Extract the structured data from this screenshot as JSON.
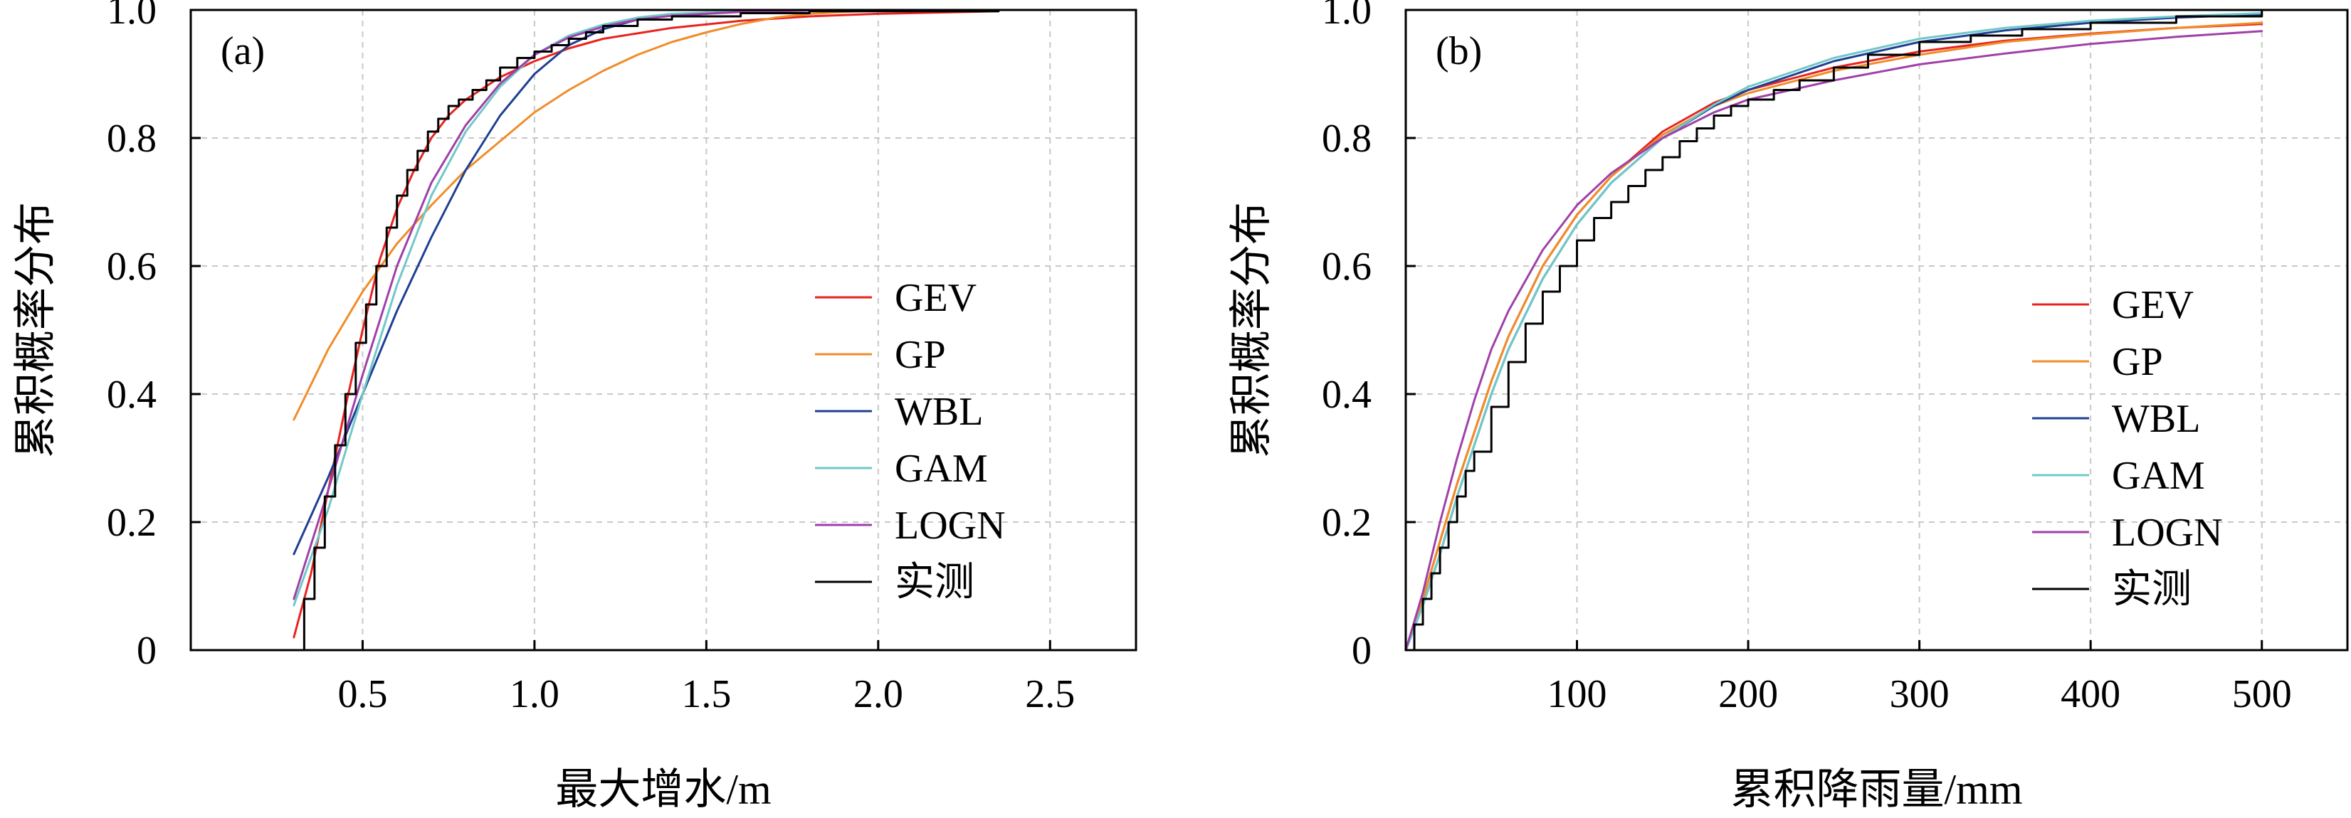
{
  "chart_data": [
    {
      "panel_label": "(a)",
      "type": "line",
      "xlabel": "最大增水/m",
      "ylabel": "累积概率分布",
      "xlim": [
        0.0,
        2.75
      ],
      "ylim": [
        0,
        1.0
      ],
      "xticks": [
        0.5,
        1.0,
        1.5,
        2.0,
        2.5
      ],
      "xtick_labels": [
        "0.5",
        "1.0",
        "1.5",
        "2.0",
        "2.5"
      ],
      "yticks": [
        0,
        0.2,
        0.4,
        0.6,
        0.8,
        1.0
      ],
      "ytick_labels": [
        "0",
        "0.2",
        "0.4",
        "0.6",
        "0.8",
        "1.0"
      ],
      "grid": true,
      "legend_position": "center-right",
      "series": [
        {
          "name": "GEV",
          "color": "#e8231f",
          "style": "line",
          "x": [
            0.3,
            0.35,
            0.4,
            0.45,
            0.5,
            0.55,
            0.6,
            0.65,
            0.7,
            0.75,
            0.8,
            0.9,
            1.0,
            1.1,
            1.2,
            1.4,
            1.6,
            1.8,
            2.0,
            2.35
          ],
          "y": [
            0.02,
            0.12,
            0.25,
            0.38,
            0.5,
            0.61,
            0.69,
            0.75,
            0.8,
            0.835,
            0.86,
            0.895,
            0.92,
            0.94,
            0.955,
            0.972,
            0.983,
            0.99,
            0.994,
            0.998
          ]
        },
        {
          "name": "GP",
          "color": "#f08c28",
          "style": "line",
          "x": [
            0.3,
            0.4,
            0.5,
            0.6,
            0.7,
            0.8,
            0.9,
            1.0,
            1.1,
            1.2,
            1.3,
            1.4,
            1.5,
            1.6,
            1.7,
            1.8,
            1.9,
            2.0
          ],
          "y": [
            0.36,
            0.47,
            0.56,
            0.635,
            0.695,
            0.75,
            0.795,
            0.84,
            0.875,
            0.905,
            0.93,
            0.95,
            0.965,
            0.978,
            0.988,
            0.994,
            0.997,
            0.999
          ]
        },
        {
          "name": "WBL",
          "color": "#1f3f94",
          "style": "line",
          "x": [
            0.3,
            0.4,
            0.5,
            0.6,
            0.7,
            0.8,
            0.9,
            1.0,
            1.1,
            1.2,
            1.3,
            1.4,
            1.6,
            1.8,
            2.0
          ],
          "y": [
            0.15,
            0.27,
            0.4,
            0.53,
            0.645,
            0.75,
            0.835,
            0.9,
            0.945,
            0.97,
            0.985,
            0.993,
            0.998,
            1.0,
            1.0
          ]
        },
        {
          "name": "GAM",
          "color": "#70c8c8",
          "style": "line",
          "x": [
            0.3,
            0.4,
            0.5,
            0.6,
            0.7,
            0.8,
            0.9,
            1.0,
            1.1,
            1.2,
            1.3,
            1.4,
            1.6,
            1.8
          ],
          "y": [
            0.07,
            0.22,
            0.4,
            0.57,
            0.71,
            0.81,
            0.88,
            0.93,
            0.96,
            0.977,
            0.988,
            0.994,
            0.998,
            1.0
          ]
        },
        {
          "name": "LOGN",
          "color": "#a040a8",
          "style": "line",
          "x": [
            0.3,
            0.4,
            0.5,
            0.6,
            0.7,
            0.8,
            0.9,
            1.0,
            1.1,
            1.2,
            1.3,
            1.4,
            1.6,
            1.8
          ],
          "y": [
            0.08,
            0.25,
            0.43,
            0.6,
            0.73,
            0.82,
            0.885,
            0.93,
            0.957,
            0.974,
            0.985,
            0.991,
            0.997,
            0.999
          ]
        },
        {
          "name": "实测",
          "color": "#000000",
          "style": "step",
          "x": [
            0.3,
            0.33,
            0.36,
            0.39,
            0.42,
            0.45,
            0.48,
            0.51,
            0.54,
            0.57,
            0.6,
            0.63,
            0.66,
            0.69,
            0.72,
            0.75,
            0.78,
            0.82,
            0.86,
            0.9,
            0.95,
            1.0,
            1.05,
            1.1,
            1.15,
            1.2,
            1.3,
            1.4,
            1.6,
            1.8,
            2.35
          ],
          "y": [
            0.0,
            0.08,
            0.16,
            0.24,
            0.32,
            0.4,
            0.48,
            0.54,
            0.6,
            0.66,
            0.71,
            0.75,
            0.78,
            0.81,
            0.83,
            0.85,
            0.86,
            0.875,
            0.89,
            0.91,
            0.925,
            0.935,
            0.945,
            0.955,
            0.965,
            0.975,
            0.985,
            0.99,
            0.995,
            0.998,
            1.0
          ]
        }
      ]
    },
    {
      "panel_label": "(b)",
      "type": "line",
      "xlabel": "累积降雨量/mm",
      "ylabel": "累积概率分布",
      "xlim": [
        0,
        550
      ],
      "ylim": [
        0,
        1.0
      ],
      "xticks": [
        100,
        200,
        300,
        400,
        500
      ],
      "xtick_labels": [
        "100",
        "200",
        "300",
        "400",
        "500"
      ],
      "yticks": [
        0,
        0.2,
        0.4,
        0.6,
        0.8,
        1.0
      ],
      "ytick_labels": [
        "0",
        "0.2",
        "0.4",
        "0.6",
        "0.8",
        "1.0"
      ],
      "grid": true,
      "legend_position": "center-right",
      "series": [
        {
          "name": "GEV",
          "color": "#e8231f",
          "style": "line",
          "x": [
            0,
            10,
            20,
            30,
            40,
            50,
            60,
            80,
            100,
            120,
            150,
            180,
            200,
            250,
            300,
            350,
            400,
            450,
            500
          ],
          "y": [
            0.0,
            0.08,
            0.17,
            0.26,
            0.34,
            0.42,
            0.49,
            0.6,
            0.68,
            0.74,
            0.81,
            0.855,
            0.875,
            0.91,
            0.935,
            0.952,
            0.963,
            0.972,
            0.978
          ]
        },
        {
          "name": "GP",
          "color": "#f08c28",
          "style": "line",
          "x": [
            0,
            10,
            20,
            30,
            40,
            50,
            60,
            80,
            100,
            120,
            150,
            180,
            200,
            250,
            300,
            350,
            400,
            450,
            500
          ],
          "y": [
            0.0,
            0.08,
            0.17,
            0.26,
            0.34,
            0.42,
            0.49,
            0.6,
            0.68,
            0.74,
            0.805,
            0.85,
            0.87,
            0.905,
            0.93,
            0.95,
            0.962,
            0.972,
            0.98
          ]
        },
        {
          "name": "WBL",
          "color": "#1f3f94",
          "style": "line",
          "x": [
            0,
            10,
            20,
            30,
            40,
            50,
            60,
            80,
            100,
            120,
            150,
            180,
            200,
            250,
            300,
            350,
            400,
            450,
            500
          ],
          "y": [
            0.0,
            0.07,
            0.15,
            0.24,
            0.32,
            0.4,
            0.47,
            0.58,
            0.665,
            0.73,
            0.8,
            0.85,
            0.875,
            0.92,
            0.95,
            0.968,
            0.98,
            0.988,
            0.993
          ]
        },
        {
          "name": "GAM",
          "color": "#70c8c8",
          "style": "line",
          "x": [
            0,
            10,
            20,
            30,
            40,
            50,
            60,
            80,
            100,
            120,
            150,
            180,
            200,
            250,
            300,
            350,
            400,
            450,
            500
          ],
          "y": [
            0.0,
            0.07,
            0.15,
            0.24,
            0.32,
            0.4,
            0.47,
            0.58,
            0.665,
            0.73,
            0.8,
            0.852,
            0.88,
            0.925,
            0.955,
            0.972,
            0.983,
            0.99,
            0.995
          ]
        },
        {
          "name": "LOGN",
          "color": "#a040a8",
          "style": "line",
          "x": [
            0,
            10,
            20,
            30,
            40,
            50,
            60,
            80,
            100,
            120,
            150,
            180,
            200,
            250,
            300,
            350,
            400,
            450,
            500
          ],
          "y": [
            0.0,
            0.09,
            0.2,
            0.3,
            0.39,
            0.47,
            0.53,
            0.625,
            0.695,
            0.745,
            0.8,
            0.84,
            0.86,
            0.89,
            0.915,
            0.932,
            0.947,
            0.958,
            0.967
          ]
        },
        {
          "name": "实测",
          "color": "#000000",
          "style": "step",
          "x": [
            0,
            5,
            10,
            15,
            20,
            25,
            30,
            35,
            40,
            50,
            60,
            70,
            80,
            90,
            100,
            110,
            120,
            130,
            140,
            150,
            160,
            170,
            180,
            190,
            200,
            215,
            230,
            250,
            270,
            300,
            330,
            360,
            400,
            450,
            500
          ],
          "y": [
            0.0,
            0.04,
            0.08,
            0.12,
            0.16,
            0.2,
            0.24,
            0.28,
            0.31,
            0.38,
            0.45,
            0.51,
            0.56,
            0.6,
            0.64,
            0.675,
            0.7,
            0.725,
            0.75,
            0.77,
            0.795,
            0.815,
            0.835,
            0.85,
            0.86,
            0.875,
            0.89,
            0.91,
            0.93,
            0.95,
            0.96,
            0.97,
            0.98,
            0.99,
            1.0
          ]
        }
      ]
    }
  ]
}
